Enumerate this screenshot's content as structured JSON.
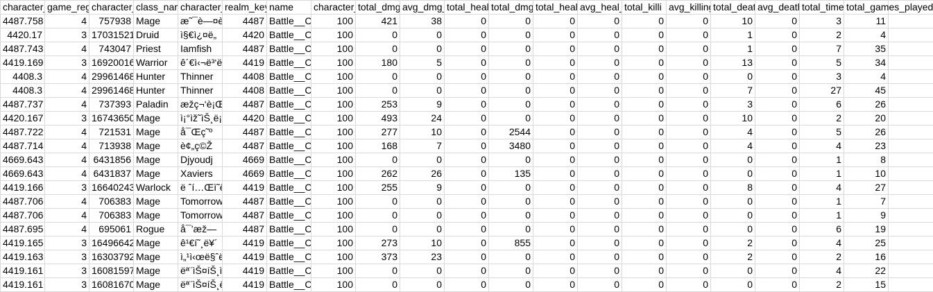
{
  "sheet": {
    "headers": [
      "character_",
      "game_reg",
      "character_",
      "class_nam",
      "character_",
      "realm_key",
      "name",
      "character_",
      "total_dmg",
      "avg_dmg_",
      "total_heal",
      "total_dmg",
      "total_heal",
      "avg_heal_",
      "total_killi",
      "avg_killing",
      "total_deat",
      "avg_death",
      "total_time",
      "total_games_played",
      ""
    ],
    "numeric_columns": [
      0,
      1,
      2,
      5,
      7,
      8,
      9,
      10,
      11,
      12,
      13,
      14,
      15,
      16,
      17,
      18,
      19
    ],
    "rows": [
      [
        "4487.758",
        "4",
        "757938",
        "Mage",
        "æ˜¯è—¤è",
        "4487",
        "Battle__Co",
        "100",
        "421",
        "38",
        "0",
        "0",
        "0",
        "0",
        "0",
        "0",
        "10",
        "0",
        "3",
        "11"
      ],
      [
        "4420.17",
        "3",
        "17031521",
        "Druid",
        "ì§€ì¿¤ë„",
        "4420",
        "Battle__Co",
        "100",
        "0",
        "0",
        "0",
        "0",
        "0",
        "0",
        "0",
        "0",
        "1",
        "0",
        "2",
        "4"
      ],
      [
        "4487.743",
        "4",
        "743047",
        "Priest",
        "Iamfish",
        "4487",
        "Battle__Co",
        "100",
        "0",
        "0",
        "0",
        "0",
        "0",
        "0",
        "0",
        "0",
        "1",
        "0",
        "7",
        "35"
      ],
      [
        "4419.169",
        "3",
        "16920016",
        "Warrior",
        "ê´€ì‹¬ë³‘ë",
        "4419",
        "Battle__Co",
        "100",
        "180",
        "5",
        "0",
        "0",
        "0",
        "0",
        "0",
        "0",
        "13",
        "0",
        "5",
        "34"
      ],
      [
        "4408.3",
        "4",
        "29961468",
        "Hunter",
        "Thinner",
        "4408",
        "Battle__Co",
        "100",
        "0",
        "0",
        "0",
        "0",
        "0",
        "0",
        "0",
        "0",
        "0",
        "0",
        "3",
        "4"
      ],
      [
        "4408.3",
        "4",
        "29961468",
        "Hunter",
        "Thinner",
        "4408",
        "Battle__Co",
        "100",
        "0",
        "0",
        "0",
        "0",
        "0",
        "0",
        "0",
        "0",
        "7",
        "0",
        "27",
        "45"
      ],
      [
        "4487.737",
        "4",
        "737393",
        "Paladin",
        "æžç¬‘è¡Œ",
        "4487",
        "Battle__Co",
        "100",
        "253",
        "9",
        "0",
        "0",
        "0",
        "0",
        "0",
        "0",
        "3",
        "0",
        "6",
        "26"
      ],
      [
        "4420.167",
        "3",
        "16743650",
        "Mage",
        "ì¡°ìž˜ìŠ¸ë¡œ",
        "4420",
        "Battle__Co",
        "100",
        "493",
        "24",
        "0",
        "0",
        "0",
        "0",
        "0",
        "0",
        "10",
        "0",
        "2",
        "20"
      ],
      [
        "4487.722",
        "4",
        "721531",
        "Mage",
        "å¯Œç˜º",
        "4487",
        "Battle__Co",
        "100",
        "277",
        "10",
        "0",
        "2544",
        "0",
        "0",
        "0",
        "0",
        "4",
        "0",
        "5",
        "26"
      ],
      [
        "4487.714",
        "4",
        "713938",
        "Mage",
        "è¢„ç©Ž",
        "4487",
        "Battle__Co",
        "100",
        "168",
        "7",
        "0",
        "3480",
        "0",
        "0",
        "0",
        "0",
        "4",
        "0",
        "4",
        "23"
      ],
      [
        "4669.643",
        "4",
        "6431856",
        "Mage",
        "Djyoudj",
        "4669",
        "Battle__Co",
        "100",
        "0",
        "0",
        "0",
        "0",
        "0",
        "0",
        "0",
        "0",
        "0",
        "0",
        "1",
        "8"
      ],
      [
        "4669.643",
        "4",
        "6431837",
        "Mage",
        "Xaviers",
        "4669",
        "Battle__Co",
        "100",
        "262",
        "26",
        "0",
        "135",
        "0",
        "0",
        "0",
        "0",
        "0",
        "0",
        "1",
        "10"
      ],
      [
        "4419.166",
        "3",
        "16640243",
        "Warlock",
        "ë ˆí…Œì˜ê",
        "4419",
        "Battle__Co",
        "100",
        "255",
        "9",
        "0",
        "0",
        "0",
        "0",
        "0",
        "0",
        "8",
        "0",
        "4",
        "27"
      ],
      [
        "4487.706",
        "4",
        "706383",
        "Mage",
        "Tomorrow",
        "4487",
        "Battle__Co",
        "100",
        "0",
        "0",
        "0",
        "0",
        "0",
        "0",
        "0",
        "0",
        "0",
        "0",
        "1",
        "7"
      ],
      [
        "4487.706",
        "4",
        "706383",
        "Mage",
        "Tomorrow",
        "4487",
        "Battle__Co",
        "100",
        "0",
        "0",
        "0",
        "0",
        "0",
        "0",
        "0",
        "0",
        "0",
        "0",
        "1",
        "9"
      ],
      [
        "4487.695",
        "4",
        "695061",
        "Rogue",
        "å¯’æž—",
        "4487",
        "Battle__Co",
        "100",
        "0",
        "0",
        "0",
        "0",
        "0",
        "0",
        "0",
        "0",
        "0",
        "0",
        "6",
        "19"
      ],
      [
        "4419.165",
        "3",
        "16496642",
        "Mage",
        "ê¹€í˜¸ë¥´",
        "4419",
        "Battle__Co",
        "100",
        "273",
        "10",
        "0",
        "855",
        "0",
        "0",
        "0",
        "0",
        "2",
        "0",
        "4",
        "25"
      ],
      [
        "4419.163",
        "3",
        "16303792",
        "Mage",
        "ì„¹ì‹œë§ˆë",
        "4419",
        "Battle__Co",
        "100",
        "373",
        "23",
        "0",
        "0",
        "0",
        "0",
        "0",
        "0",
        "2",
        "0",
        "2",
        "16"
      ],
      [
        "4419.161",
        "3",
        "16081597",
        "Mage",
        "ëª¨ìŠ¤íŠ¸ì„",
        "4419",
        "Battle__Co",
        "100",
        "0",
        "0",
        "0",
        "0",
        "0",
        "0",
        "0",
        "0",
        "0",
        "0",
        "4",
        "22"
      ],
      [
        "4419.161",
        "3",
        "16081670",
        "Mage",
        "ëª¨ìŠ¤íŠ¸ë",
        "4419",
        "Battle__Co",
        "100",
        "0",
        "0",
        "0",
        "0",
        "0",
        "0",
        "0",
        "0",
        "0",
        "0",
        "2",
        "15"
      ]
    ]
  }
}
